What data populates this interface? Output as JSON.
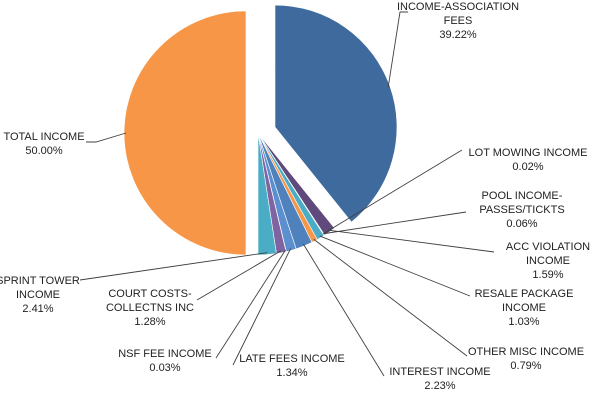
{
  "chart_data": {
    "type": "pie",
    "title": "",
    "slices": [
      {
        "label": "INCOME-ASSOCIATION FEES",
        "lines": [
          "INCOME-ASSOCIATION",
          "FEES"
        ],
        "pct": "39.22%",
        "value": 39.22,
        "color": "#3f679b"
      },
      {
        "label": "ACC VIOLATION INCOME",
        "lines": [
          "ACC VIOLATION",
          "INCOME"
        ],
        "pct": "1.59%",
        "value": 1.59,
        "color": "#6a4e8c"
      },
      {
        "label": "LOT MOWING INCOME",
        "lines": [
          "LOT MOWING INCOME"
        ],
        "pct": "0.02%",
        "value": 0.02,
        "color": "#4aa3b8"
      },
      {
        "label": "POOL INCOME-PASSES/TICKTS",
        "lines": [
          "POOL INCOME-",
          "PASSES/TICKTS"
        ],
        "pct": "0.06%",
        "value": 0.06,
        "color": "#e08a3c"
      },
      {
        "label": "RESALE PACKAGE INCOME",
        "lines": [
          "RESALE PACKAGE",
          "INCOME"
        ],
        "pct": "1.03%",
        "value": 1.03,
        "color": "#3a6fa6"
      },
      {
        "label": "OTHER MISC INCOME",
        "lines": [
          "OTHER MISC INCOME"
        ],
        "pct": "0.79%",
        "value": 0.79,
        "color": "#f0862a"
      },
      {
        "label": "INTEREST INCOME",
        "lines": [
          "INTEREST  INCOME"
        ],
        "pct": "2.23%",
        "value": 2.23,
        "color": "#4f81bd"
      },
      {
        "label": "LATE FEES INCOME",
        "lines": [
          "LATE FEES  INCOME"
        ],
        "pct": "1.34%",
        "value": 1.34,
        "color": "#5b8fd0"
      },
      {
        "label": "NSF FEE INCOME",
        "lines": [
          "NSF FEE INCOME"
        ],
        "pct": "0.03%",
        "value": 0.03,
        "color": "#9bbb59"
      },
      {
        "label": "COURT COSTS-COLLECTNS INC",
        "lines": [
          "COURT COSTS-",
          "COLLECTNS INC"
        ],
        "pct": "1.28%",
        "value": 1.28,
        "color": "#c0504d"
      },
      {
        "label": "SPRINT TOWER INCOME",
        "lines": [
          "SPRINT TOWER",
          "INCOME"
        ],
        "pct": "2.41%",
        "value": 2.41,
        "color": "#8064a2"
      },
      {
        "label": "TOTAL INCOME",
        "lines": [
          "TOTAL INCOME"
        ],
        "pct": "50.00%",
        "value": 50.0,
        "color": "#4bacc6"
      }
    ]
  }
}
